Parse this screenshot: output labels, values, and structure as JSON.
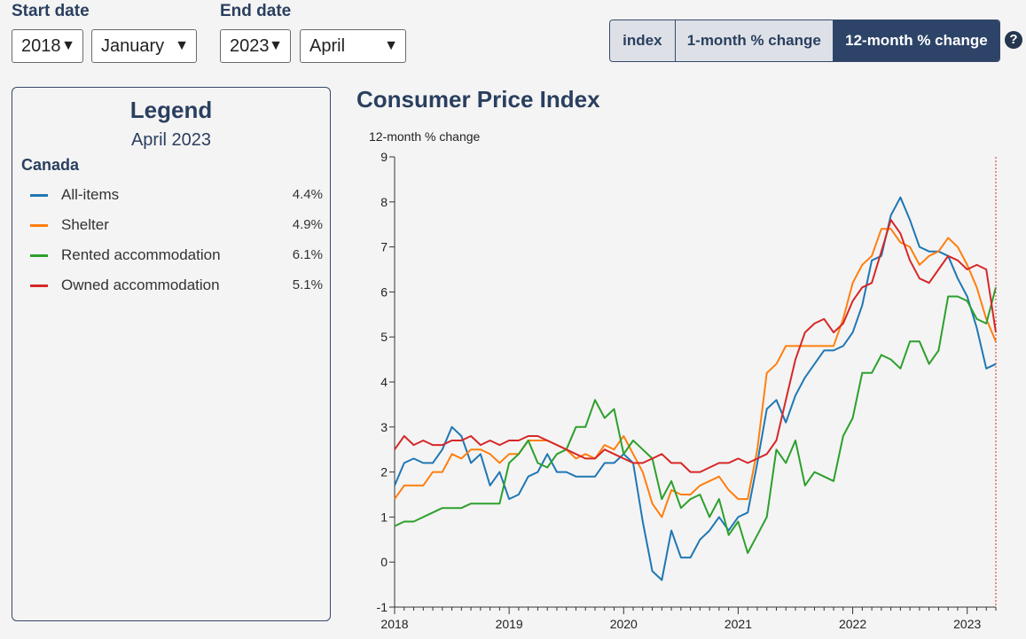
{
  "controls": {
    "start_label": "Start date",
    "start_year": "2018",
    "start_month": "January",
    "end_label": "End date",
    "end_year": "2023",
    "end_month": "April",
    "toggle": [
      "index",
      "1-month % change",
      "12-month % change"
    ],
    "toggle_active": "12-month % change",
    "help": "?"
  },
  "legend": {
    "title": "Legend",
    "date": "April 2023",
    "region": "Canada",
    "items": [
      {
        "name": "All-items",
        "value": "4.4%",
        "color": "#1f77b4"
      },
      {
        "name": "Shelter",
        "value": "4.9%",
        "color": "#ff7f0e"
      },
      {
        "name": "Rented accommodation",
        "value": "6.1%",
        "color": "#2ca02c"
      },
      {
        "name": "Owned accommodation",
        "value": "5.1%",
        "color": "#d62728"
      }
    ]
  },
  "chart_data": {
    "type": "line",
    "title": "Consumer Price Index",
    "ylabel": "12-month % change",
    "ylim": [
      -1,
      9
    ],
    "yticks": [
      -1,
      0,
      1,
      2,
      3,
      4,
      5,
      6,
      7,
      8,
      9
    ],
    "x_start": "2018-01",
    "x_end": "2023-04",
    "xtick_labels": [
      "2018",
      "2019",
      "2020",
      "2021",
      "2022",
      "2023"
    ],
    "grid": false,
    "marker": "2023-04",
    "series": [
      {
        "name": "All-items",
        "color": "#1f77b4",
        "values": [
          1.7,
          2.2,
          2.3,
          2.2,
          2.2,
          2.5,
          3.0,
          2.8,
          2.2,
          2.4,
          1.7,
          2.0,
          1.4,
          1.5,
          1.9,
          2.0,
          2.4,
          2.0,
          2.0,
          1.9,
          1.9,
          1.9,
          2.2,
          2.2,
          2.4,
          2.2,
          0.9,
          -0.2,
          -0.4,
          0.7,
          0.1,
          0.1,
          0.5,
          0.7,
          1.0,
          0.7,
          1.0,
          1.1,
          2.2,
          3.4,
          3.6,
          3.1,
          3.7,
          4.1,
          4.4,
          4.7,
          4.7,
          4.8,
          5.1,
          5.7,
          6.7,
          6.8,
          7.7,
          8.1,
          7.6,
          7.0,
          6.9,
          6.9,
          6.8,
          6.3,
          5.9,
          5.2,
          4.3,
          4.4
        ]
      },
      {
        "name": "Shelter",
        "color": "#ff7f0e",
        "values": [
          1.4,
          1.7,
          1.7,
          1.7,
          2.0,
          2.0,
          2.4,
          2.3,
          2.5,
          2.5,
          2.4,
          2.2,
          2.4,
          2.4,
          2.7,
          2.7,
          2.7,
          2.6,
          2.5,
          2.3,
          2.4,
          2.3,
          2.6,
          2.5,
          2.8,
          2.4,
          2.0,
          1.3,
          1.0,
          1.6,
          1.5,
          1.5,
          1.7,
          1.8,
          1.9,
          1.6,
          1.4,
          1.4,
          2.5,
          4.2,
          4.4,
          4.8,
          4.8,
          4.8,
          4.8,
          4.8,
          4.8,
          5.4,
          6.2,
          6.6,
          6.8,
          7.4,
          7.4,
          7.1,
          7.0,
          6.6,
          6.8,
          6.9,
          7.2,
          7.0,
          6.6,
          6.1,
          5.4,
          4.9
        ]
      },
      {
        "name": "Rented accommodation",
        "color": "#2ca02c",
        "values": [
          0.8,
          0.9,
          0.9,
          1.0,
          1.1,
          1.2,
          1.2,
          1.2,
          1.3,
          1.3,
          1.3,
          1.3,
          2.2,
          2.4,
          2.7,
          2.2,
          2.1,
          2.4,
          2.5,
          3.0,
          3.0,
          3.6,
          3.2,
          3.4,
          2.4,
          2.7,
          2.5,
          2.3,
          1.4,
          1.8,
          1.2,
          1.4,
          1.5,
          1.0,
          1.4,
          0.6,
          0.9,
          0.2,
          0.6,
          1.0,
          2.5,
          2.2,
          2.7,
          1.7,
          2.0,
          1.9,
          1.8,
          2.8,
          3.2,
          4.2,
          4.2,
          4.6,
          4.5,
          4.3,
          4.9,
          4.9,
          4.4,
          4.7,
          5.9,
          5.9,
          5.8,
          5.4,
          5.3,
          6.1
        ]
      },
      {
        "name": "Owned accommodation",
        "color": "#d62728",
        "values": [
          2.5,
          2.8,
          2.6,
          2.7,
          2.6,
          2.6,
          2.7,
          2.7,
          2.8,
          2.6,
          2.7,
          2.6,
          2.7,
          2.7,
          2.8,
          2.8,
          2.7,
          2.6,
          2.5,
          2.4,
          2.3,
          2.3,
          2.5,
          2.4,
          2.3,
          2.2,
          2.2,
          2.3,
          2.4,
          2.2,
          2.2,
          2.0,
          2.0,
          2.1,
          2.2,
          2.2,
          2.3,
          2.2,
          2.3,
          2.4,
          2.7,
          3.6,
          4.5,
          5.1,
          5.3,
          5.4,
          5.1,
          5.3,
          5.8,
          6.1,
          6.2,
          6.9,
          7.6,
          7.3,
          6.7,
          6.3,
          6.2,
          6.5,
          6.8,
          6.7,
          6.5,
          6.6,
          6.5,
          5.1
        ]
      }
    ]
  }
}
